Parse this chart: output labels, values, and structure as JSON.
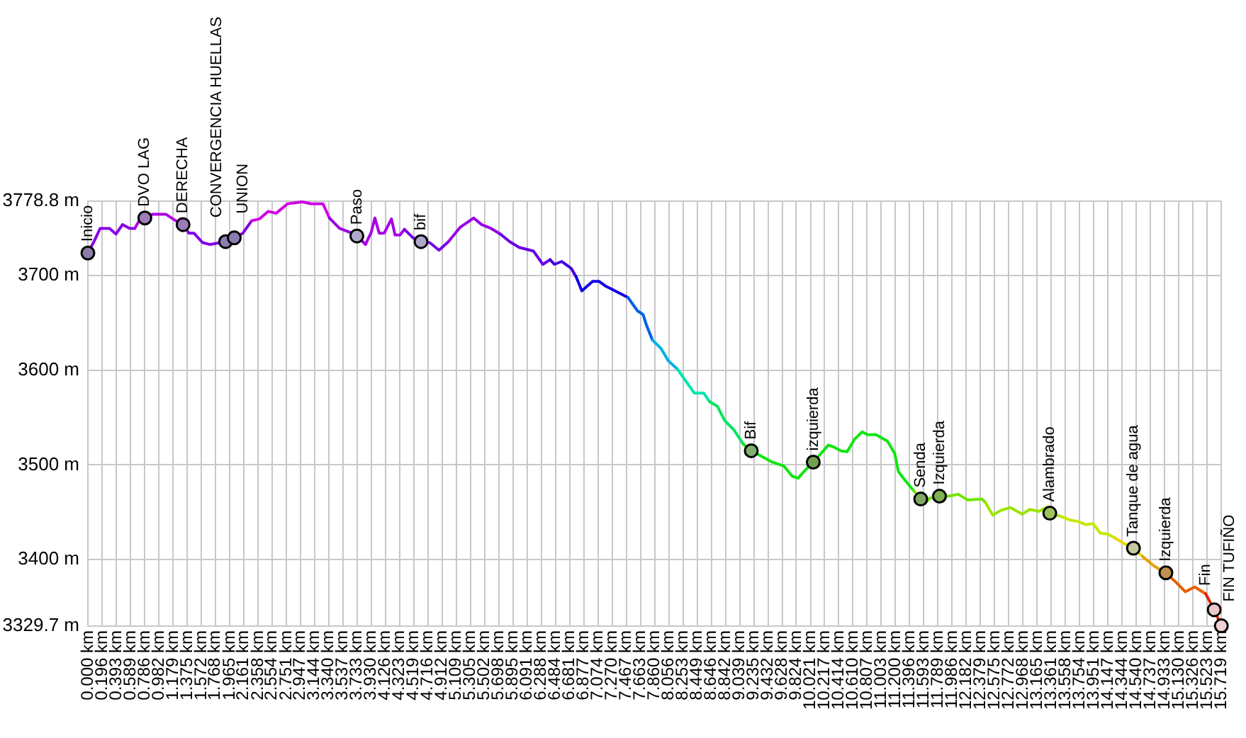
{
  "chart_data": {
    "type": "line",
    "xlim": [
      0,
      15.719
    ],
    "xticks": [
      {
        "value": 0,
        "label": "0.000 km"
      },
      {
        "value": 0.196,
        "label": "0.196 km"
      },
      {
        "value": 0.393,
        "label": "0.393 km"
      },
      {
        "value": 0.589,
        "label": "0.589 km"
      },
      {
        "value": 0.786,
        "label": "0.786 km"
      },
      {
        "value": 0.982,
        "label": "0.982 km"
      },
      {
        "value": 1.179,
        "label": "1.179 km"
      },
      {
        "value": 1.375,
        "label": "1.375 km"
      },
      {
        "value": 1.572,
        "label": "1.572 km"
      },
      {
        "value": 1.768,
        "label": "1.768 km"
      },
      {
        "value": 1.965,
        "label": "1.965 km"
      },
      {
        "value": 2.161,
        "label": "2.161 km"
      },
      {
        "value": 2.358,
        "label": "2.358 km"
      },
      {
        "value": 2.554,
        "label": "2.554 km"
      },
      {
        "value": 2.751,
        "label": "2.751 km"
      },
      {
        "value": 2.947,
        "label": "2.947 km"
      },
      {
        "value": 3.144,
        "label": "3.144 km"
      },
      {
        "value": 3.34,
        "label": "3.340 km"
      },
      {
        "value": 3.537,
        "label": "3.537 km"
      },
      {
        "value": 3.733,
        "label": "3.733 km"
      },
      {
        "value": 3.93,
        "label": "3.930 km"
      },
      {
        "value": 4.126,
        "label": "4.126 km"
      },
      {
        "value": 4.323,
        "label": "4.323 km"
      },
      {
        "value": 4.519,
        "label": "4.519 km"
      },
      {
        "value": 4.716,
        "label": "4.716 km"
      },
      {
        "value": 4.912,
        "label": "4.912 km"
      },
      {
        "value": 5.109,
        "label": "5.109 km"
      },
      {
        "value": 5.305,
        "label": "5.305 km"
      },
      {
        "value": 5.502,
        "label": "5.502 km"
      },
      {
        "value": 5.698,
        "label": "5.698 km"
      },
      {
        "value": 5.895,
        "label": "5.895 km"
      },
      {
        "value": 6.091,
        "label": "6.091 km"
      },
      {
        "value": 6.288,
        "label": "6.288 km"
      },
      {
        "value": 6.484,
        "label": "6.484 km"
      },
      {
        "value": 6.681,
        "label": "6.681 km"
      },
      {
        "value": 6.877,
        "label": "6.877 km"
      },
      {
        "value": 7.074,
        "label": "7.074 km"
      },
      {
        "value": 7.27,
        "label": "7.270 km"
      },
      {
        "value": 7.467,
        "label": "7.467 km"
      },
      {
        "value": 7.663,
        "label": "7.663 km"
      },
      {
        "value": 7.86,
        "label": "7.860 km"
      },
      {
        "value": 8.056,
        "label": "8.056 km"
      },
      {
        "value": 8.253,
        "label": "8.253 km"
      },
      {
        "value": 8.449,
        "label": "8.449 km"
      },
      {
        "value": 8.646,
        "label": "8.646 km"
      },
      {
        "value": 8.842,
        "label": "8.842 km"
      },
      {
        "value": 9.039,
        "label": "9.039 km"
      },
      {
        "value": 9.235,
        "label": "9.235 km"
      },
      {
        "value": 9.432,
        "label": "9.432 km"
      },
      {
        "value": 9.628,
        "label": "9.628 km"
      },
      {
        "value": 9.824,
        "label": "9.824 km"
      },
      {
        "value": 10.021,
        "label": "10.021 km"
      },
      {
        "value": 10.217,
        "label": "10.217 km"
      },
      {
        "value": 10.414,
        "label": "10.414 km"
      },
      {
        "value": 10.61,
        "label": "10.610 km"
      },
      {
        "value": 10.807,
        "label": "10.807 km"
      },
      {
        "value": 11.003,
        "label": "11.003 km"
      },
      {
        "value": 11.2,
        "label": "11.200 km"
      },
      {
        "value": 11.396,
        "label": "11.396 km"
      },
      {
        "value": 11.593,
        "label": "11.593 km"
      },
      {
        "value": 11.789,
        "label": "11.789 km"
      },
      {
        "value": 11.986,
        "label": "11.986 km"
      },
      {
        "value": 12.182,
        "label": "12.182 km"
      },
      {
        "value": 12.379,
        "label": "12.379 km"
      },
      {
        "value": 12.575,
        "label": "12.575 km"
      },
      {
        "value": 12.772,
        "label": "12.772 km"
      },
      {
        "value": 12.968,
        "label": "12.968 km"
      },
      {
        "value": 13.165,
        "label": "13.165 km"
      },
      {
        "value": 13.361,
        "label": "13.361 km"
      },
      {
        "value": 13.558,
        "label": "13.558 km"
      },
      {
        "value": 13.754,
        "label": "13.754 km"
      },
      {
        "value": 13.951,
        "label": "13.951 km"
      },
      {
        "value": 14.147,
        "label": "14.147 km"
      },
      {
        "value": 14.344,
        "label": "14.344 km"
      },
      {
        "value": 14.54,
        "label": "14.540 km"
      },
      {
        "value": 14.737,
        "label": "14.737 km"
      },
      {
        "value": 14.933,
        "label": "14.933 km"
      },
      {
        "value": 15.13,
        "label": "15.130 km"
      },
      {
        "value": 15.326,
        "label": "15.326 km"
      },
      {
        "value": 15.523,
        "label": "15.523 km"
      },
      {
        "value": 15.719,
        "label": "15.719 km"
      }
    ],
    "ylim": [
      3329.7,
      3778.8
    ],
    "yticks": [
      {
        "value": 3329.7,
        "label": "3329.7 m"
      },
      {
        "value": 3400,
        "label": "3400 m"
      },
      {
        "value": 3500,
        "label": "3500 m"
      },
      {
        "value": 3600,
        "label": "3600 m"
      },
      {
        "value": 3700,
        "label": "3700 m"
      },
      {
        "value": 3778.8,
        "label": "3778.8 m"
      }
    ],
    "grid": true,
    "series": [
      {
        "color": "#8800e6",
        "x": [
          0,
          0.09,
          0.17,
          0.3,
          0.39,
          0.48,
          0.58,
          0.65
        ],
        "values": [
          3724,
          3737,
          3750,
          3750,
          3744,
          3754,
          3750,
          3750
        ]
      },
      {
        "color": "#b000e6",
        "x": [
          0.65,
          0.74,
          0.9,
          1.08,
          1.2,
          1.32
        ],
        "values": [
          3750,
          3762,
          3765,
          3765,
          3759,
          3754
        ]
      },
      {
        "color": "#8000e6",
        "x": [
          1.32,
          1.4,
          1.47,
          1.59,
          1.69,
          1.91,
          2.03,
          2.15,
          2.27
        ],
        "values": [
          3754,
          3745,
          3745,
          3735,
          3733,
          3736,
          3740,
          3745,
          3758
        ]
      },
      {
        "color": "#d000e6",
        "x": [
          2.27,
          2.38,
          2.5,
          2.61,
          2.77,
          2.97,
          3.1,
          3.26,
          3.35
        ],
        "values": [
          3758,
          3760,
          3768,
          3766,
          3776,
          3778,
          3776,
          3776,
          3761
        ]
      },
      {
        "color": "#9900e6",
        "x": [
          3.35,
          3.49,
          3.66,
          3.73,
          3.85
        ],
        "values": [
          3761,
          3750,
          3745,
          3742,
          3733
        ]
      },
      {
        "color": "#a800e6",
        "x": [
          3.85,
          3.93,
          3.98,
          4.04,
          4.11,
          4.21,
          4.26,
          4.33,
          4.39
        ],
        "values": [
          3733,
          3746,
          3761,
          3745,
          3745,
          3760,
          3743,
          3743,
          3749
        ]
      },
      {
        "color": "#7800e6",
        "x": [
          4.39,
          4.51,
          4.62,
          4.74,
          4.87,
          5
        ],
        "values": [
          3749,
          3740,
          3736,
          3735,
          3727,
          3736
        ]
      },
      {
        "color": "#9900e6",
        "x": [
          5,
          5.16,
          5.35,
          5.46,
          5.59,
          5.72
        ],
        "values": [
          3736,
          3751,
          3761,
          3754,
          3750,
          3744
        ]
      },
      {
        "color": "#6800e6",
        "x": [
          5.72,
          5.85,
          5.98,
          6.18,
          6.31,
          6.41
        ],
        "values": [
          3744,
          3736,
          3730,
          3726,
          3712,
          3717
        ]
      },
      {
        "color": "#4000e6",
        "x": [
          6.41,
          6.47,
          6.57,
          6.7,
          6.77
        ],
        "values": [
          3717,
          3712,
          3715,
          3708,
          3699
        ]
      },
      {
        "color": "#1000e6",
        "x": [
          6.77,
          6.85,
          7,
          7.09,
          7.18,
          7.26,
          7.36,
          7.49
        ],
        "values": [
          3699,
          3684,
          3694,
          3694,
          3689,
          3686,
          3682,
          3677
        ]
      },
      {
        "color": "#0060e6",
        "x": [
          7.49,
          7.62,
          7.7,
          7.75,
          7.83
        ],
        "values": [
          3677,
          3663,
          3659,
          3647,
          3632
        ]
      },
      {
        "color": "#00b0e6",
        "x": [
          7.83,
          7.95,
          8.05,
          8.18
        ],
        "values": [
          3632,
          3623,
          3610,
          3601
        ]
      },
      {
        "color": "#00e6b0",
        "x": [
          8.18,
          8.27,
          8.41,
          8.54,
          8.62
        ],
        "values": [
          3601,
          3591,
          3576,
          3576,
          3567
        ]
      },
      {
        "color": "#00e660",
        "x": [
          8.62,
          8.73,
          8.83,
          8.96,
          9.09
        ],
        "values": [
          3567,
          3562,
          3547,
          3537,
          3522
        ]
      },
      {
        "color": "#10e610",
        "x": [
          9.09,
          9.2,
          9.32,
          9.49,
          9.65,
          9.77,
          9.85,
          9.93,
          10.06,
          10.27,
          10.34,
          10.44,
          10.53,
          10.63,
          10.74,
          10.81,
          10.93,
          11.09,
          11.19,
          11.24,
          11.32,
          11.45
        ],
        "values": [
          3522,
          3515,
          3510,
          3503,
          3499,
          3488,
          3486,
          3493,
          3503,
          3521,
          3519,
          3515,
          3514,
          3527,
          3535,
          3532,
          3532,
          3525,
          3512,
          3493,
          3485,
          3473
        ]
      },
      {
        "color": "#70e600",
        "x": [
          11.45,
          11.55,
          11.6,
          11.68,
          11.81,
          11.94,
          12.07,
          12.2,
          12.4,
          12.45
        ],
        "values": [
          3473,
          3464,
          3459,
          3465,
          3467,
          3467,
          3469,
          3463,
          3464,
          3460
        ]
      },
      {
        "color": "#99e600",
        "x": [
          12.45,
          12.55,
          12.66,
          12.79,
          12.96,
          13.06,
          13.19,
          13.29,
          13.34,
          13.48
        ],
        "values": [
          3460,
          3447,
          3452,
          3455,
          3448,
          3453,
          3451,
          3455,
          3449,
          3446
        ]
      },
      {
        "color": "#c8e600",
        "x": [
          13.48,
          13.61,
          13.74,
          13.84,
          13.94,
          14.04,
          14.14,
          14.24
        ],
        "values": [
          3446,
          3442,
          3440,
          3437,
          3438,
          3428,
          3427,
          3423
        ]
      },
      {
        "color": "#e6d800",
        "x": [
          14.24,
          14.37,
          14.5,
          14.63
        ],
        "values": [
          3423,
          3417,
          3412,
          3403
        ]
      },
      {
        "color": "#e6a000",
        "x": [
          14.63,
          14.79,
          14.95
        ],
        "values": [
          3403,
          3393,
          3386
        ]
      },
      {
        "color": "#e66000",
        "x": [
          14.95,
          15.09,
          15.22,
          15.35,
          15.5
        ],
        "values": [
          3386,
          3376,
          3366,
          3371,
          3364
        ]
      },
      {
        "color": "#e62000",
        "x": [
          15.5,
          15.62,
          15.719
        ],
        "values": [
          3364,
          3347,
          3330
        ]
      },
      {
        "type": "scatter",
        "marker": "circle",
        "x": [
          0,
          0.79,
          1.32,
          1.91,
          2.03,
          3.73,
          4.62,
          9.2,
          10.06,
          11.55,
          11.81,
          13.34,
          14.5,
          14.95,
          15.62,
          15.719
        ],
        "values": [
          3724,
          3761,
          3754,
          3736,
          3740,
          3742,
          3736,
          3515,
          3503,
          3464,
          3467,
          3449,
          3412,
          3386,
          3347,
          3330
        ],
        "colors": [
          "#8c7ca8",
          "#a07cb8",
          "#9a7cb8",
          "#8c7cb0",
          "#8c7cb0",
          "#b0a8c8",
          "#b0a8c8",
          "#80b070",
          "#70a050",
          "#80a860",
          "#80b050",
          "#a0c060",
          "#c8c8a0",
          "#c09050",
          "#e8c8c8",
          "#f0d0d0"
        ]
      }
    ],
    "annotations": [
      {
        "text": "Inicio",
        "x": 0,
        "y": 3724
      },
      {
        "text": "DVO LAG",
        "x": 0.79,
        "y": 3761
      },
      {
        "text": "DERECHA",
        "x": 1.32,
        "y": 3754
      },
      {
        "text": "CONVERGENCIA HUELLAS",
        "x": 1.91,
        "y": 3736
      },
      {
        "text": "UNION",
        "x": 2.03,
        "y": 3740
      },
      {
        "text": "Paso",
        "x": 3.73,
        "y": 3742
      },
      {
        "text": "bif",
        "x": 4.62,
        "y": 3736
      },
      {
        "text": "Bif",
        "x": 9.2,
        "y": 3515
      },
      {
        "text": "izquierda",
        "x": 10.06,
        "y": 3503
      },
      {
        "text": "Senda",
        "x": 11.55,
        "y": 3464
      },
      {
        "text": "Izquierda",
        "x": 11.81,
        "y": 3467
      },
      {
        "text": "Alambrado",
        "x": 13.34,
        "y": 3449
      },
      {
        "text": "Tanque de agua",
        "x": 14.5,
        "y": 3412
      },
      {
        "text": "Izquierda",
        "x": 14.95,
        "y": 3386
      },
      {
        "text": "Fin",
        "x": 15.62,
        "y": 3347
      },
      {
        "text": "FIN TUFIÑO",
        "x": 15.719,
        "y": 3330
      }
    ]
  }
}
